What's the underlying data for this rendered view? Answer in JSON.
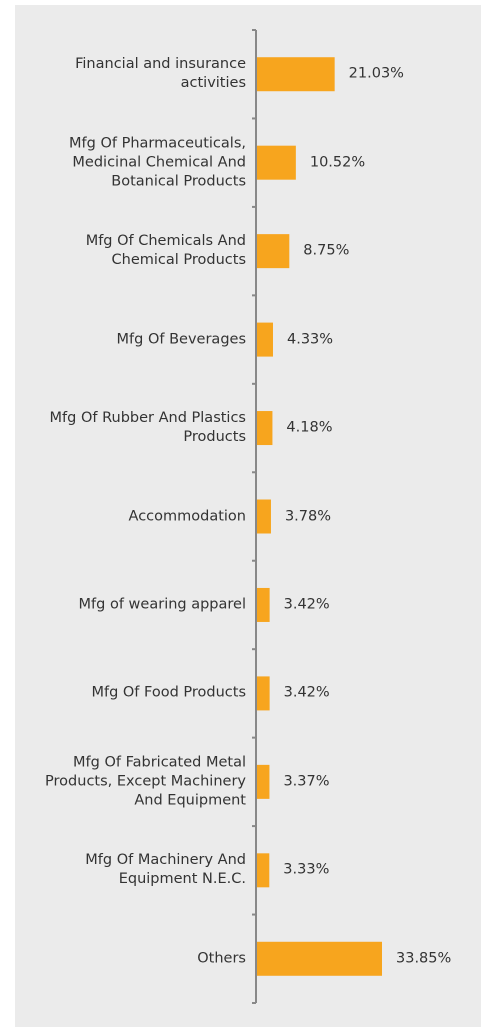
{
  "chart_data": {
    "type": "bar",
    "orientation": "horizontal",
    "categories": [
      "Financial and insurance\nactivities",
      "Mfg Of Pharmaceuticals,\nMedicinal Chemical And\nBotanical Products",
      "Mfg Of Chemicals And\nChemical Products",
      "Mfg Of Beverages",
      "Mfg Of Rubber And Plastics\nProducts",
      "Accommodation",
      "Mfg of wearing apparel",
      "Mfg Of Food Products",
      "Mfg Of Fabricated Metal\nProducts, Except Machinery\nAnd Equipment",
      "Mfg Of Machinery And\nEquipment N.E.C.",
      "Others"
    ],
    "values": [
      21.03,
      10.52,
      8.75,
      4.33,
      4.18,
      3.78,
      3.42,
      3.42,
      3.37,
      3.33,
      33.85
    ],
    "value_labels": [
      "21.03%",
      "10.52%",
      "8.75%",
      "4.33%",
      "4.18%",
      "3.78%",
      "3.42%",
      "3.42%",
      "3.37%",
      "3.33%",
      "33.85%"
    ],
    "color": "#f7a51e"
  }
}
